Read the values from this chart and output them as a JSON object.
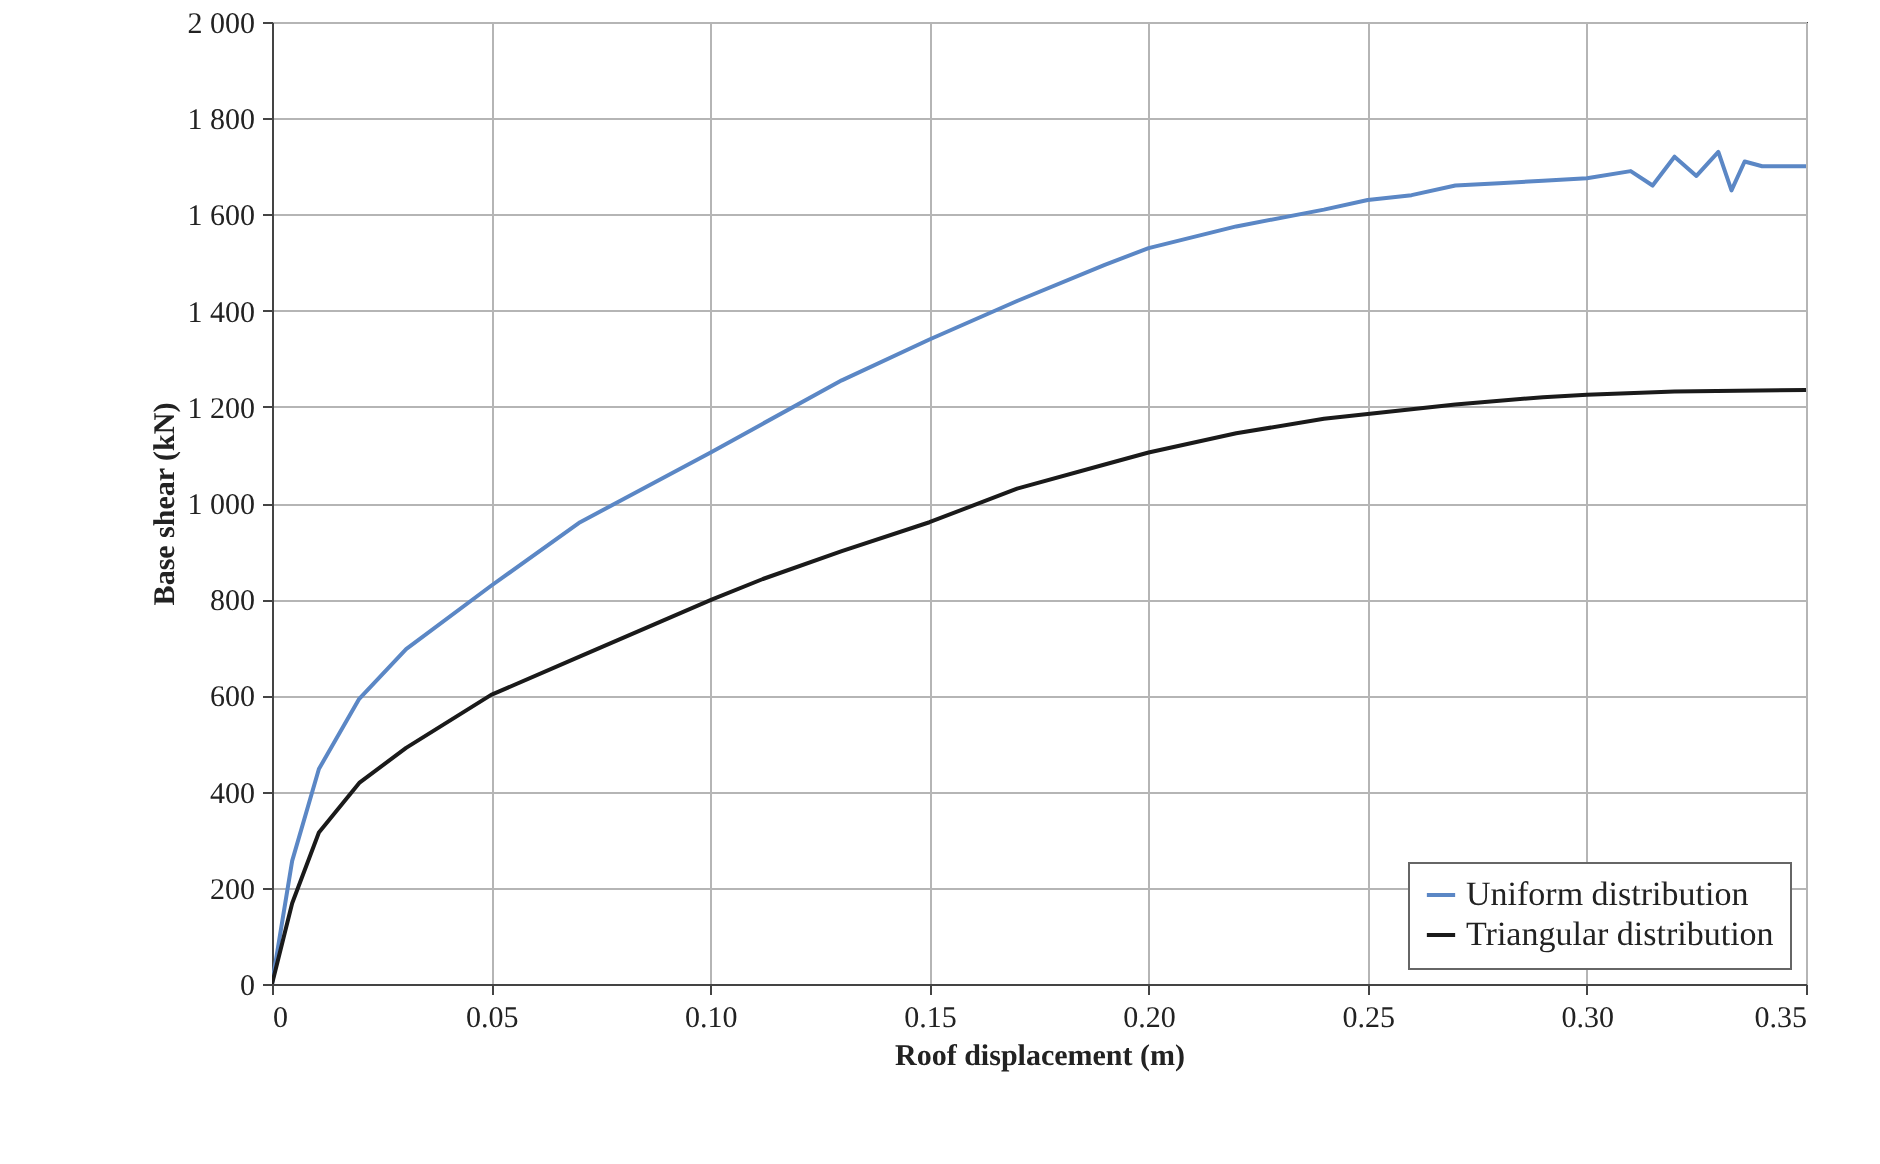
{
  "chart_data": {
    "type": "line",
    "xlabel": "Roof displacement (m)",
    "ylabel": "Base shear (kN)",
    "xlim": [
      0,
      0.35
    ],
    "xticks": [
      0,
      0.05,
      {
        "value": 0.1,
        "label": "0.10"
      },
      0.15,
      {
        "value": 0.2,
        "label": "0.20"
      },
      0.25,
      {
        "value": 0.3,
        "label": "0.30"
      },
      0.35
    ],
    "ylim": [
      0,
      2000
    ],
    "yticks": [
      0,
      200,
      400,
      600,
      800,
      {
        "value": 1000,
        "label": "1 000"
      },
      {
        "value": 1200,
        "label": "1 200"
      },
      {
        "value": 1400,
        "label": "1 400"
      },
      {
        "value": 1600,
        "label": "1 600"
      },
      {
        "value": 1800,
        "label": "1 800"
      },
      {
        "value": 2000,
        "label": "2 000"
      }
    ],
    "grid": true,
    "legend": "bottom right",
    "line_style": "solid",
    "series": [
      {
        "name": "Uniform distribution",
        "color": "#5b87c5",
        "x": [
          0,
          0.0046,
          0.0107,
          0.0199,
          0.0306,
          0.05,
          0.0703,
          0.1003,
          0.112,
          0.13,
          0.15,
          0.17,
          0.19,
          0.2,
          0.22,
          0.24,
          0.25,
          0.26,
          0.27,
          0.28,
          0.29,
          0.3,
          0.31,
          0.315,
          0.32,
          0.325,
          0.33,
          0.333,
          0.336,
          0.34,
          0.345,
          0.35
        ],
        "values": [
          0,
          256,
          447,
          593,
          696,
          828,
          960,
          1106,
          1165,
          1255,
          1340,
          1420,
          1495,
          1530,
          1575,
          1610,
          1630,
          1640,
          1660,
          1665,
          1670,
          1675,
          1690,
          1660,
          1720,
          1680,
          1730,
          1650,
          1710,
          1700,
          1700,
          1700
        ]
      },
      {
        "name": "Triangular distribution",
        "color": "#1a1a1a",
        "x": [
          0,
          0.0046,
          0.0107,
          0.0199,
          0.0306,
          0.05,
          0.0703,
          0.1003,
          0.112,
          0.13,
          0.15,
          0.17,
          0.19,
          0.2,
          0.22,
          0.24,
          0.25,
          0.27,
          0.29,
          0.3,
          0.32,
          0.35
        ],
        "values": [
          0,
          168,
          315,
          418,
          491,
          601,
          681,
          799,
          842,
          900,
          960,
          1030,
          1080,
          1105,
          1145,
          1175,
          1185,
          1205,
          1220,
          1225,
          1232,
          1235
        ]
      }
    ]
  }
}
